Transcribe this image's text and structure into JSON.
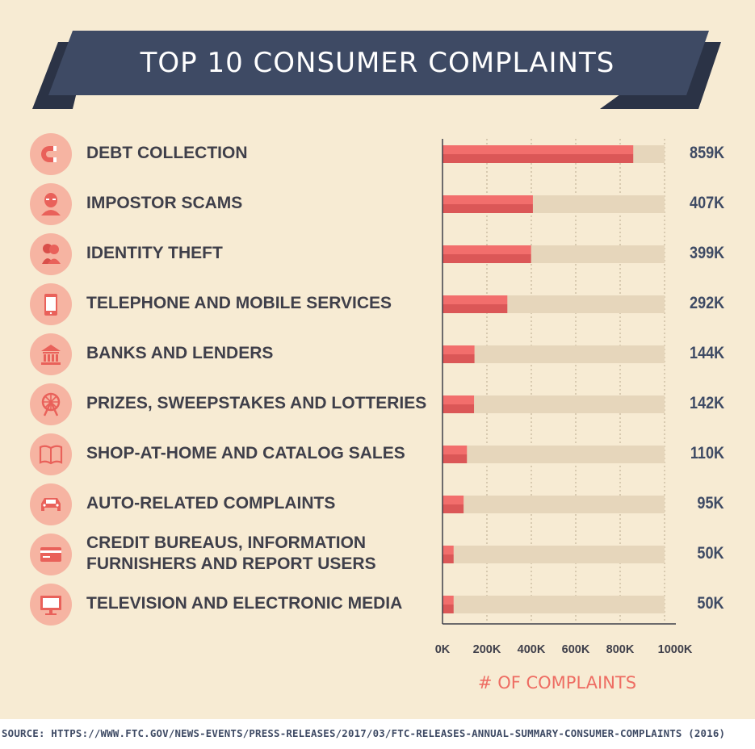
{
  "colors": {
    "background": "#f7ebd3",
    "banner_front": "#3e4a64",
    "banner_back": "#2b3346",
    "bar_fill_top": "#f26e6c",
    "bar_fill_bottom": "#db5757",
    "bar_track": "#e6d6bb",
    "icon_circle": "#f6b4a2",
    "icon_glyph": "#e9615a",
    "label_text": "#3f3f4a",
    "value_text": "#3e4a64",
    "axis_title": "#ee6d63"
  },
  "title": "TOP 10 CONSUMER COMPLAINTS",
  "rows": [
    {
      "label": "DEBT COLLECTION",
      "value": 859,
      "display": "859K",
      "icon": "magnet-icon"
    },
    {
      "label": "IMPOSTOR SCAMS",
      "value": 407,
      "display": "407K",
      "icon": "masked-person-icon"
    },
    {
      "label": "IDENTITY THEFT",
      "value": 399,
      "display": "399K",
      "icon": "two-people-icon"
    },
    {
      "label": "TELEPHONE AND MOBILE SERVICES",
      "value": 292,
      "display": "292K",
      "icon": "mobile-phone-icon"
    },
    {
      "label": "BANKS AND LENDERS",
      "value": 144,
      "display": "144K",
      "icon": "bank-icon"
    },
    {
      "label": "PRIZES, SWEEPSTAKES AND LOTTERIES",
      "value": 142,
      "display": "142K",
      "icon": "prize-wheel-icon"
    },
    {
      "label": "SHOP-AT-HOME AND CATALOG SALES",
      "value": 110,
      "display": "110K",
      "icon": "open-book-icon"
    },
    {
      "label": "AUTO-RELATED COMPLAINTS",
      "value": 95,
      "display": "95K",
      "icon": "car-icon"
    },
    {
      "label": "CREDIT BUREAUS, INFORMATION FURNISHERS AND REPORT USERS",
      "value": 50,
      "display": "50K",
      "icon": "credit-card-icon"
    },
    {
      "label": "TELEVISION AND ELECTRONIC MEDIA",
      "value": 50,
      "display": "50K",
      "icon": "television-icon"
    }
  ],
  "chart_data": {
    "type": "bar",
    "orientation": "horizontal",
    "title": "TOP 10 CONSUMER COMPLAINTS",
    "categories": [
      "DEBT COLLECTION",
      "IMPOSTOR SCAMS",
      "IDENTITY THEFT",
      "TELEPHONE AND MOBILE SERVICES",
      "BANKS AND LENDERS",
      "PRIZES, SWEEPSTAKES AND LOTTERIES",
      "SHOP-AT-HOME AND CATALOG SALES",
      "AUTO-RELATED COMPLAINTS",
      "CREDIT BUREAUS, INFORMATION FURNISHERS AND REPORT USERS",
      "TELEVISION AND ELECTRONIC MEDIA"
    ],
    "values": [
      859,
      407,
      399,
      292,
      144,
      142,
      110,
      95,
      50,
      50
    ],
    "data_labels": [
      "859K",
      "407K",
      "399K",
      "292K",
      "144K",
      "142K",
      "110K",
      "95K",
      "50K",
      "50K"
    ],
    "xlabel": "# OF COMPLAINTS",
    "xlim": [
      0,
      1000
    ],
    "xticks": [
      0,
      200,
      400,
      600,
      800,
      1000
    ],
    "xtick_labels": [
      "0K",
      "200K",
      "400K",
      "600K",
      "800K",
      "1000K"
    ],
    "grid": "vertical dotted"
  },
  "source": "SOURCE: HTTPS://WWW.FTC.GOV/NEWS-EVENTS/PRESS-RELEASES/2017/03/FTC-RELEASES-ANNUAL-SUMMARY-CONSUMER-COMPLAINTS (2016)"
}
